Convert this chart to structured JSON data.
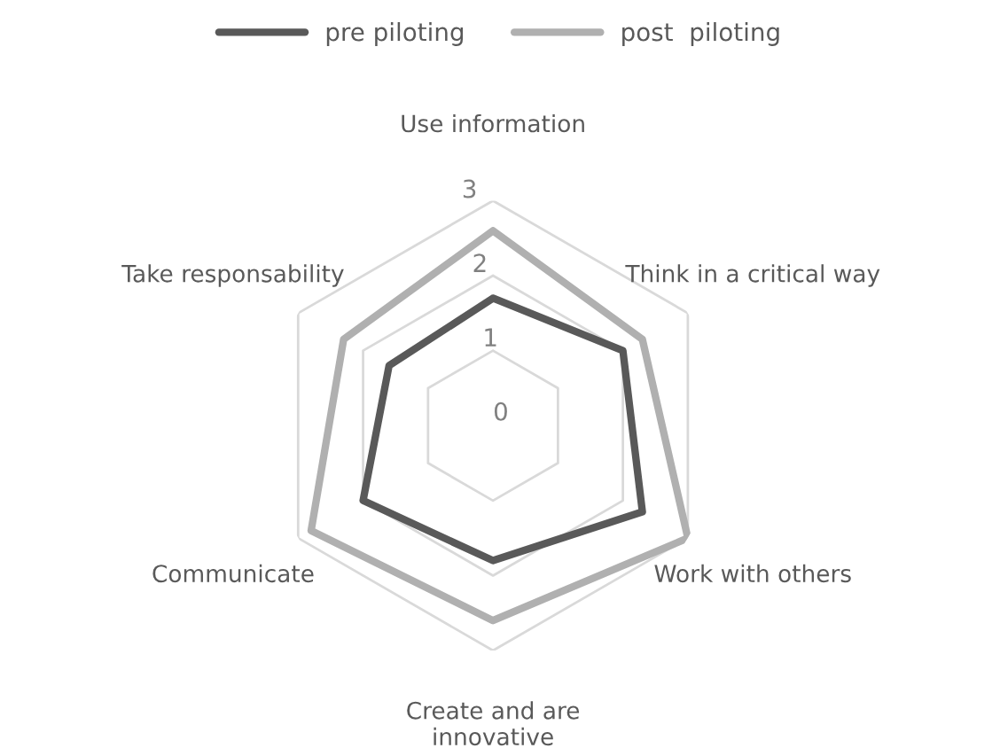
{
  "chart_data": {
    "type": "radar",
    "categories": [
      "Use information",
      "Think in a critical way",
      "Work with others",
      "Create and are\ninnovative",
      "Communicate",
      "Take responsability"
    ],
    "series": [
      {
        "name": "pre piloting",
        "color": "#595959",
        "values": [
          1.7,
          2.0,
          2.3,
          1.8,
          2.0,
          1.6
        ]
      },
      {
        "name": "post  piloting",
        "color": "#b0b0b0",
        "values": [
          2.6,
          2.3,
          3.0,
          2.6,
          2.8,
          2.3
        ]
      }
    ],
    "ylim": [
      0,
      3
    ],
    "yticks": [
      0,
      1,
      2,
      3
    ],
    "grid": true,
    "legend": "top"
  }
}
